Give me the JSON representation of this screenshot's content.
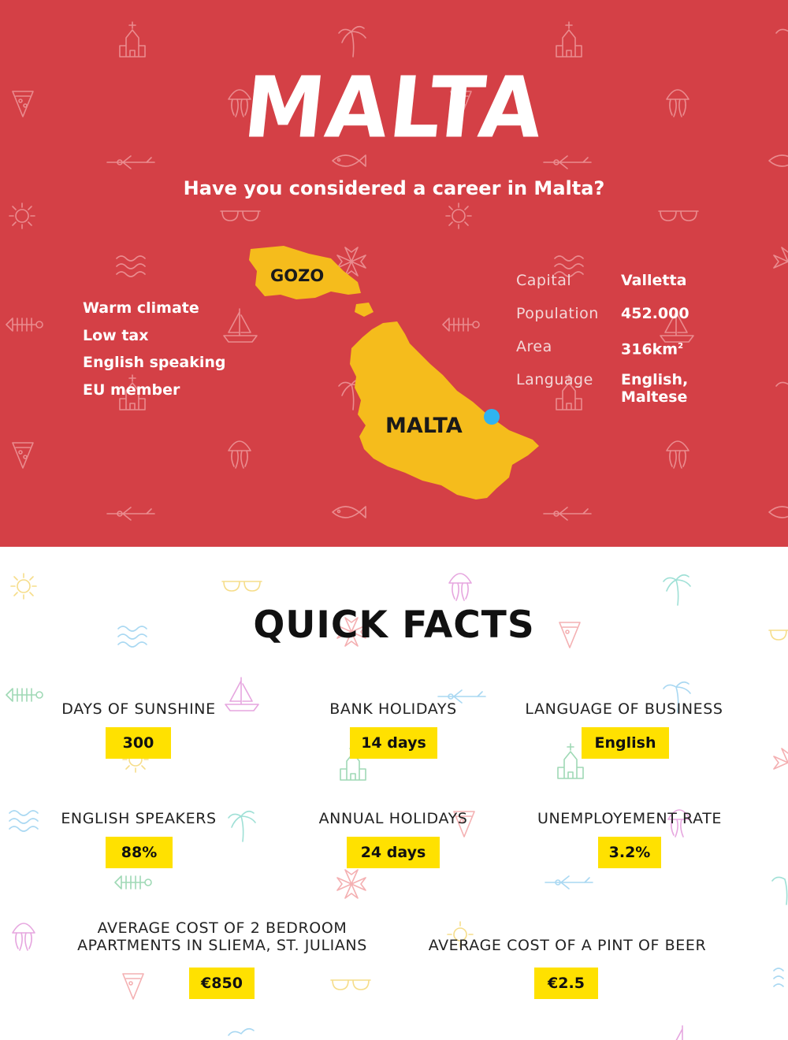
{
  "header": {
    "title": "MALTA",
    "subtitle": "Have you considered a career in Malta?"
  },
  "benefits": [
    "Warm climate",
    "Low tax",
    "English speaking",
    "EU member"
  ],
  "map": {
    "island_labels": [
      "GOZO",
      "MALTA"
    ],
    "colors": {
      "land": "#f5bc1c",
      "capital_marker": "#2fb3f0"
    }
  },
  "country_facts": [
    {
      "key": "Capital",
      "value": "Valletta"
    },
    {
      "key": "Population",
      "value": "452.000"
    },
    {
      "key": "Area",
      "value": "316km",
      "sup": "2"
    },
    {
      "key": "Language",
      "value": "English,",
      "value2": "Maltese"
    }
  ],
  "quick_facts": {
    "title": "QUICK FACTS",
    "items": [
      {
        "label": "DAYS OF SUNSHINE",
        "value": "300"
      },
      {
        "label": "BANK HOLIDAYS",
        "value": "14 days"
      },
      {
        "label": "LANGUAGE OF BUSINESS",
        "value": "English"
      },
      {
        "label": "ENGLISH SPEAKERS",
        "value": "88%"
      },
      {
        "label": "ANNUAL HOLIDAYS",
        "value": "24 days"
      },
      {
        "label": "UNEMPLOYEMENT RATE",
        "value": "3.2%"
      },
      {
        "label": "AVERAGE COST OF 2 BEDROOM",
        "label2": "APARTMENTS IN SLIEMA, ST. JULIANS",
        "value": "€850"
      },
      {
        "label": "AVERAGE COST OF A PINT OF BEER",
        "value": "€2.5"
      }
    ]
  },
  "colors": {
    "header_background": "#d44046",
    "highlight": "#ffe100",
    "text_dark": "#111111"
  },
  "decor_icons": [
    "church-icon",
    "palm-tree-icon",
    "pizza-icon",
    "jellyfish-icon",
    "airplane-icon",
    "fish-icon",
    "sun-icon",
    "sunglasses-icon",
    "waves-icon",
    "maltese-cross-icon",
    "fishbone-icon",
    "sailboat-icon"
  ]
}
